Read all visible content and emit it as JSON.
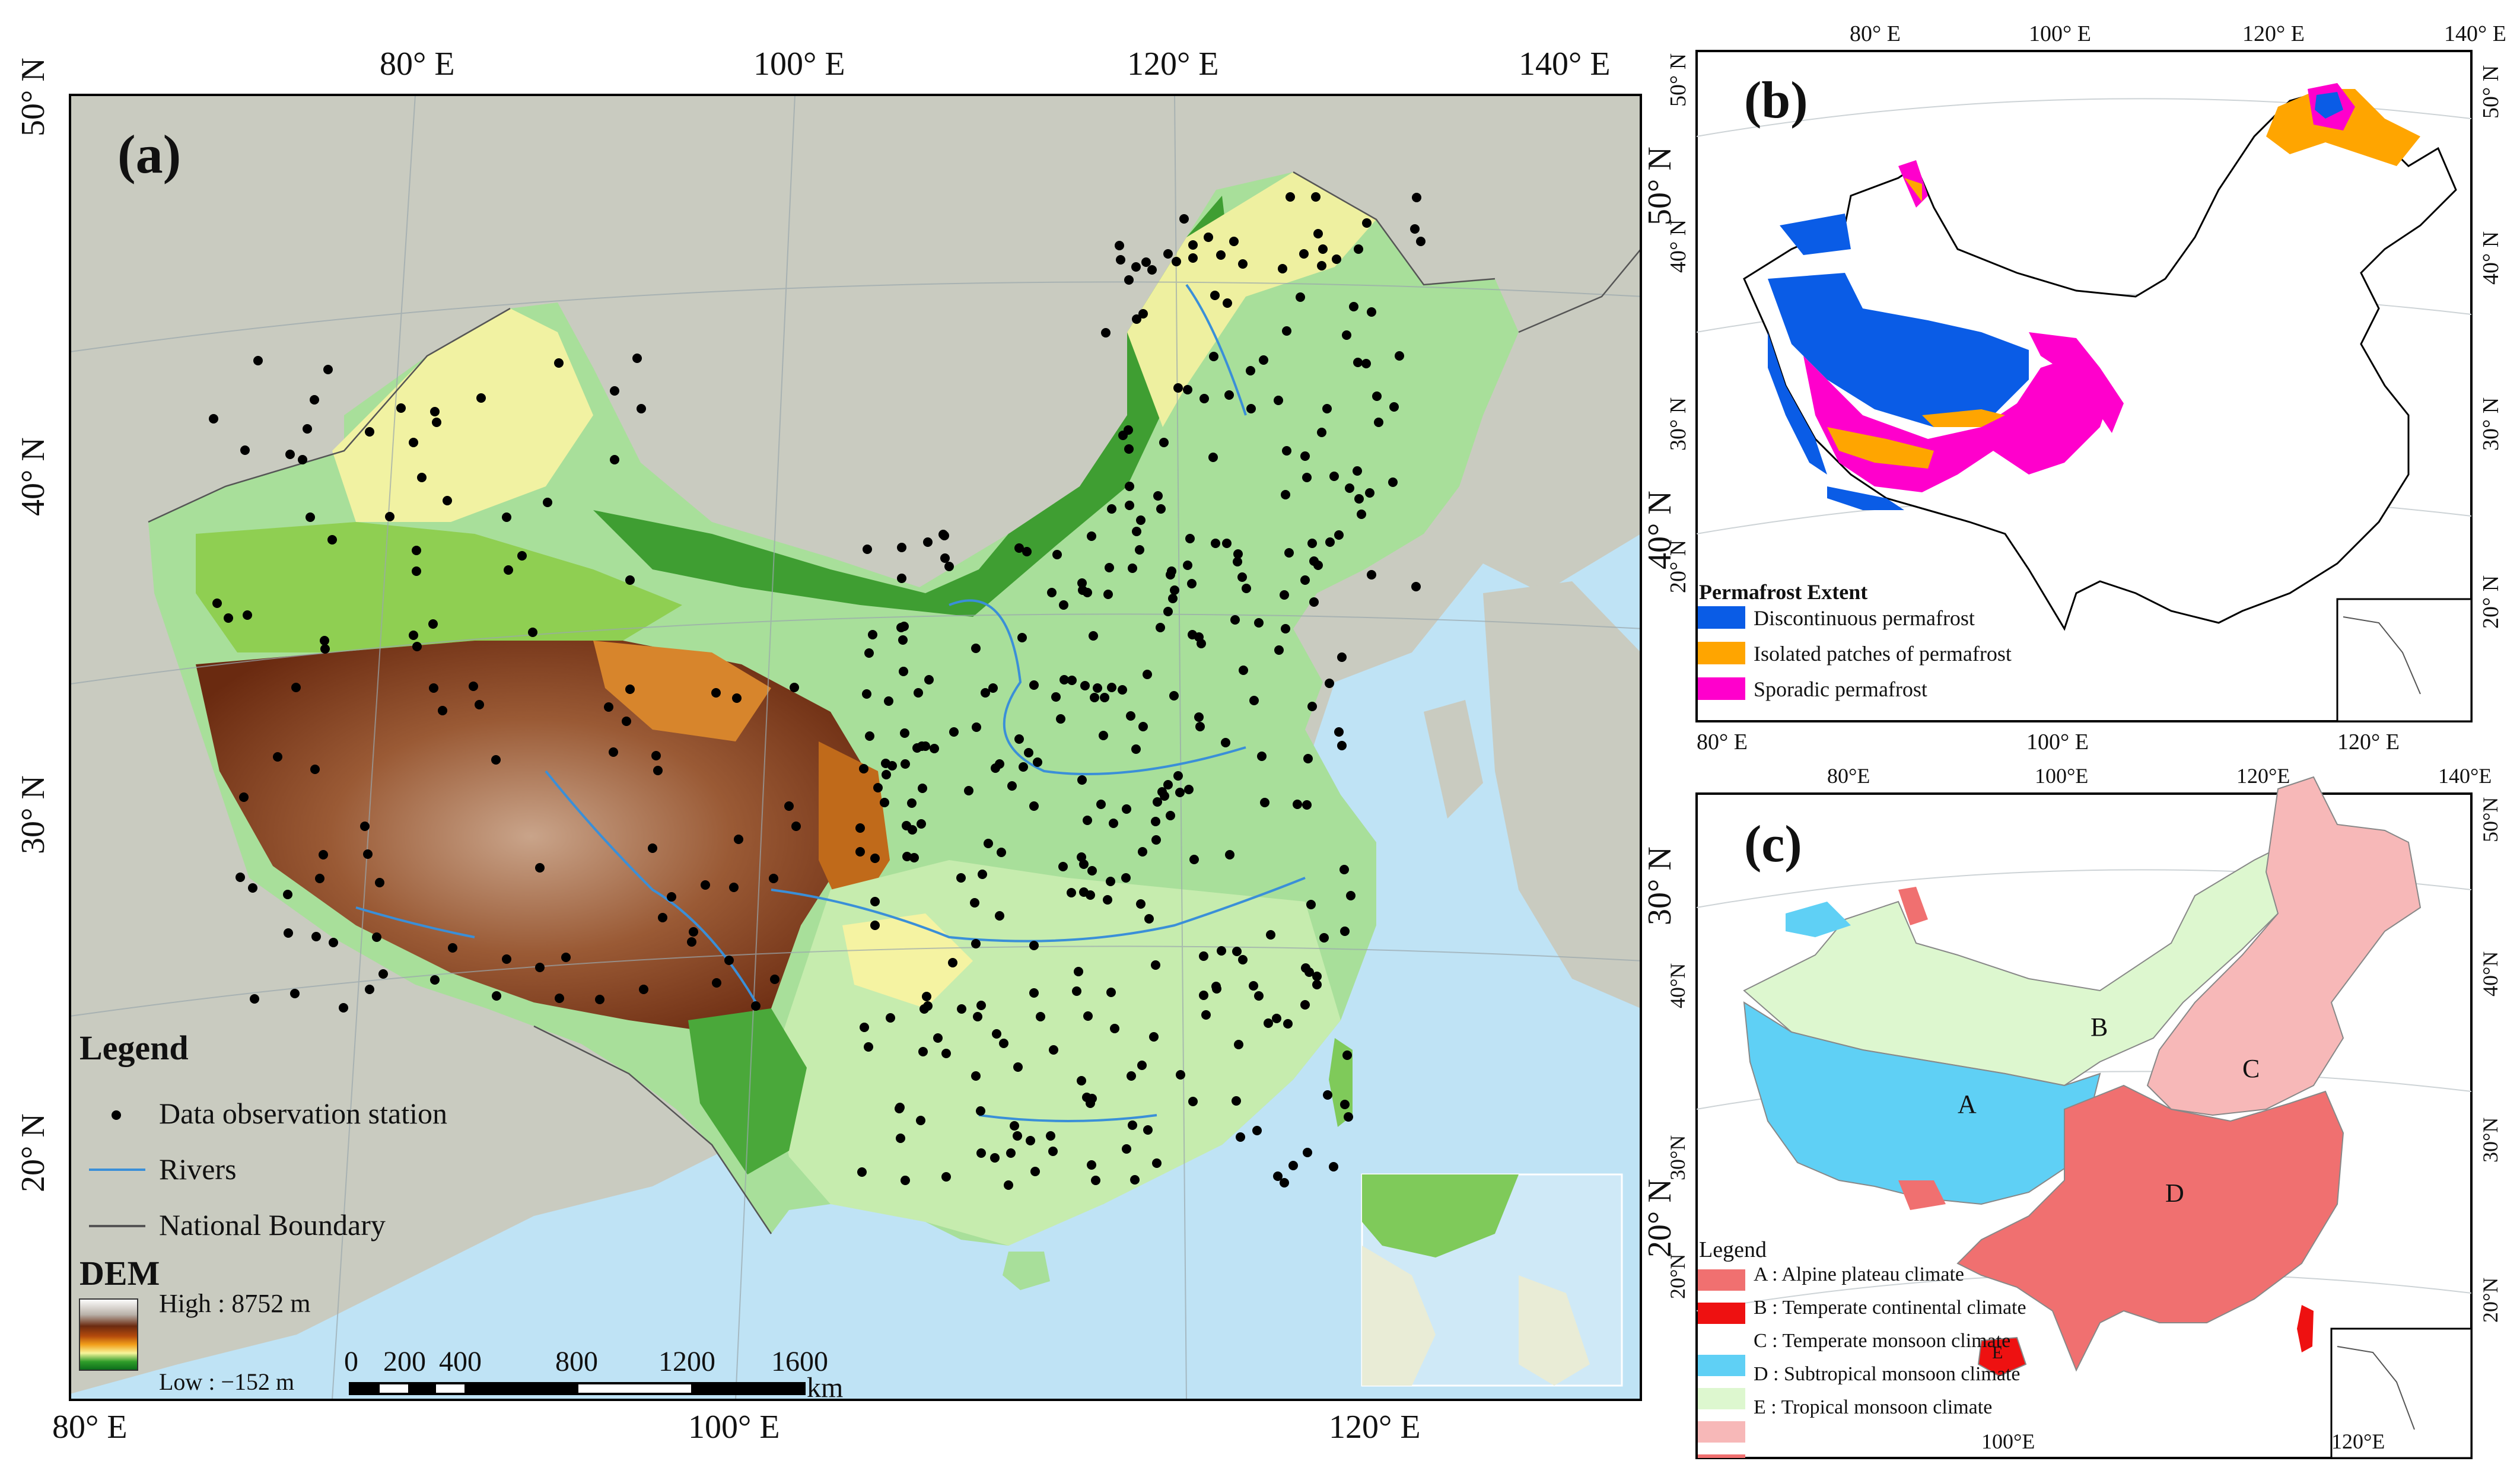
{
  "panel_a": {
    "label": "(a)",
    "top_ticks": [
      "80° E",
      "100° E",
      "120° E",
      "140° E"
    ],
    "bottom_ticks": [
      "80° E",
      "100° E",
      "120° E"
    ],
    "left_ticks": [
      "50° N",
      "40° N",
      "30° N",
      "20° N"
    ],
    "right_ticks": [
      "50° N",
      "40° N",
      "30° N",
      "20° N"
    ],
    "legend": {
      "title": "Legend",
      "items": [
        "Data observation station",
        "Rivers",
        "National Boundary"
      ],
      "dem_title": "DEM",
      "dem_high": "High : 8752 m",
      "dem_low": "Low : −152 m"
    },
    "scale": {
      "labels": [
        "0",
        "200",
        "400",
        "800",
        "1200",
        "1600"
      ],
      "unit": "km"
    },
    "colors": {
      "sea": "#bfe3f5",
      "land_outside": "#c9cbc0",
      "station": "#000000",
      "river": "#3a8fd8"
    }
  },
  "panel_b": {
    "label": "(b)",
    "top_ticks": [
      "80° E",
      "100° E",
      "120° E",
      "140° E"
    ],
    "bottom_ticks": [
      "80° E",
      "100° E",
      "120° E"
    ],
    "left_ticks": [
      "50° N",
      "40° N",
      "30° N",
      "20° N"
    ],
    "right_ticks": [
      "50° N",
      "40° N",
      "30° N",
      "20° N"
    ],
    "legend": {
      "title": "Permafrost Extent",
      "items": [
        {
          "label": "Discontinuous permafrost",
          "color": "#0a5ce6"
        },
        {
          "label": "Isolated patches of permafrost",
          "color": "#ffa500"
        },
        {
          "label": "Sporadic permafrost",
          "color": "#ff00cc"
        }
      ]
    }
  },
  "panel_c": {
    "label": "(c)",
    "top_ticks": [
      "80°E",
      "100°E",
      "120°E",
      "140°E"
    ],
    "bottom_ticks": [
      "100°E",
      "120°E"
    ],
    "left_ticks": [
      "40°N",
      "30°N",
      "20°N"
    ],
    "right_ticks": [
      "50°N",
      "40°N",
      "30°N",
      "20°N"
    ],
    "zones": [
      {
        "letter": "A",
        "color": "#5fd0f5"
      },
      {
        "letter": "B",
        "color": "#ddf7cf"
      },
      {
        "letter": "C",
        "color": "#f7b8b8"
      },
      {
        "letter": "D",
        "color": "#f07070"
      },
      {
        "letter": "E",
        "color": "#ee1111"
      }
    ],
    "legend": {
      "title": "Legend",
      "items": [
        {
          "label": "A : Alpine plateau climate",
          "color": "#5fd0f5"
        },
        {
          "label": "B : Temperate continental climate",
          "color": "#ddf7cf"
        },
        {
          "label": "C : Temperate monsoon climate",
          "color": "#f7b8b8"
        },
        {
          "label": "D : Subtropical monsoon climate",
          "color": "#f07070"
        },
        {
          "label": "E : Tropical monsoon climate",
          "color": "#ee1111"
        }
      ]
    }
  }
}
